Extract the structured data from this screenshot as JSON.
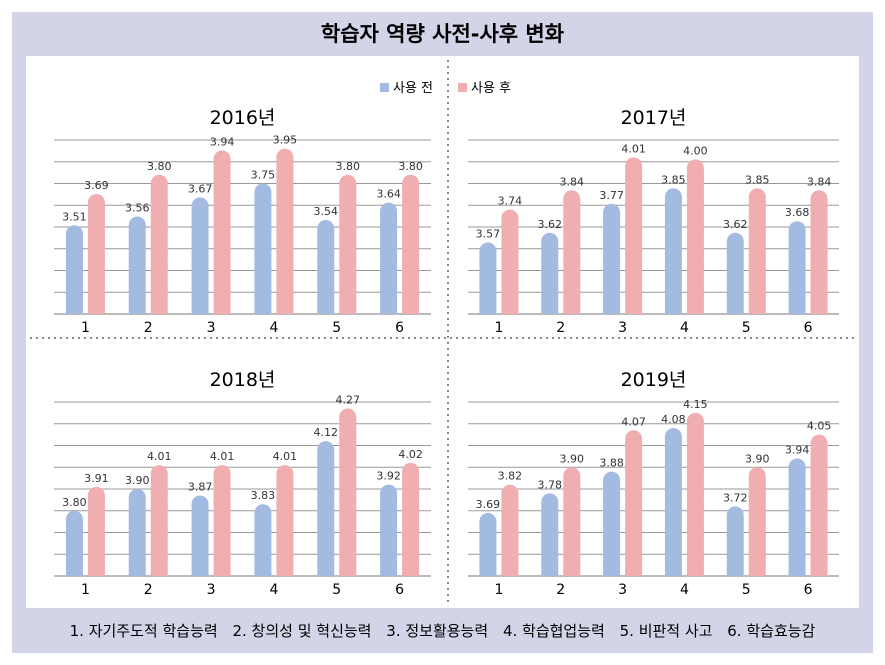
{
  "page": {
    "title": "학습자 역량 사전-사후 변화",
    "footer": [
      "1. 자기주도적 학습능력",
      "2. 창의성 및 혁신능력",
      "3. 정보활용능력",
      "4. 학습협업능력",
      "5. 비판적 사고",
      "6. 학습효능감"
    ]
  },
  "colors": {
    "before": "#a3bbe0",
    "after": "#f0aeb1",
    "grid": "#999999",
    "frame": "#d4d4e8"
  },
  "chart_data": [
    {
      "type": "bar",
      "title": "2016년",
      "categories": [
        "1",
        "2",
        "3",
        "4",
        "5",
        "6"
      ],
      "ylim": [
        3.0,
        4.0
      ],
      "series": [
        {
          "name": "사용 전",
          "values": [
            3.51,
            3.56,
            3.67,
            3.75,
            3.54,
            3.64
          ],
          "labels": [
            "3.51",
            "3.56",
            "3.67",
            "3.75",
            "3.54",
            "3.64"
          ]
        },
        {
          "name": "사용 후",
          "values": [
            3.69,
            3.8,
            3.94,
            3.95,
            3.8,
            3.8
          ],
          "labels": [
            "3.69",
            "3.80",
            "3.94",
            "3.95",
            "3.80",
            "3.80"
          ]
        }
      ],
      "grid": true,
      "legend": "top-right"
    },
    {
      "type": "bar",
      "title": "2017년",
      "categories": [
        "1",
        "2",
        "3",
        "4",
        "5",
        "6"
      ],
      "ylim": [
        3.2,
        4.1
      ],
      "series": [
        {
          "name": "사용 전",
          "values": [
            3.57,
            3.62,
            3.77,
            3.85,
            3.62,
            3.68
          ],
          "labels": [
            "3.57",
            "3.62",
            "3.77",
            "3.85",
            "3.62",
            "3.68"
          ]
        },
        {
          "name": "사용 후",
          "values": [
            3.74,
            3.84,
            4.01,
            4.0,
            3.85,
            3.84
          ],
          "labels": [
            "3.74",
            "3.84",
            "4.01",
            "4.00",
            "3.85",
            "3.84"
          ]
        }
      ],
      "grid": true
    },
    {
      "type": "bar",
      "title": "2018년",
      "categories": [
        "1",
        "2",
        "3",
        "4",
        "5",
        "6"
      ],
      "ylim": [
        3.5,
        4.3
      ],
      "series": [
        {
          "name": "사용 전",
          "values": [
            3.8,
            3.9,
            3.87,
            3.83,
            4.12,
            3.92
          ],
          "labels": [
            "3.80",
            "3.90",
            "3.87",
            "3.83",
            "4.12",
            "3.92"
          ]
        },
        {
          "name": "사용 후",
          "values": [
            3.91,
            4.01,
            4.01,
            4.01,
            4.27,
            4.02
          ],
          "labels": [
            "3.91",
            "4.01",
            "4.01",
            "4.01",
            "4.27",
            "4.02"
          ]
        }
      ],
      "grid": true
    },
    {
      "type": "bar",
      "title": "2019년",
      "categories": [
        "1",
        "2",
        "3",
        "4",
        "5",
        "6"
      ],
      "ylim": [
        3.4,
        4.2
      ],
      "series": [
        {
          "name": "사용 전",
          "values": [
            3.69,
            3.78,
            3.88,
            4.08,
            3.72,
            3.94
          ],
          "labels": [
            "3.69",
            "3.78",
            "3.88",
            "4.08",
            "3.72",
            "3.94"
          ]
        },
        {
          "name": "사용 후",
          "values": [
            3.82,
            3.9,
            4.07,
            4.15,
            3.9,
            4.05
          ],
          "labels": [
            "3.82",
            "3.90",
            "4.07",
            "4.15",
            "3.90",
            "4.05"
          ]
        }
      ],
      "grid": true
    }
  ]
}
